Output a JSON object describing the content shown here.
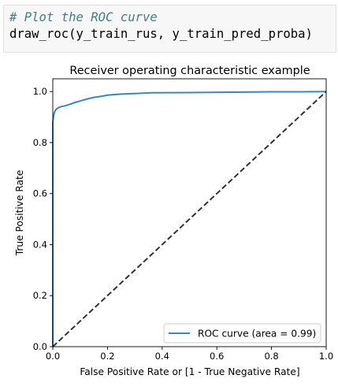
{
  "code_cell": {
    "comment": "# Plot the ROC curve",
    "call": "draw_roc(y_train_rus, y_train_pred_proba)"
  },
  "chart_data": {
    "type": "line",
    "title": "Receiver operating characteristic example",
    "xlabel": "False Positive Rate or [1 - True Negative Rate]",
    "ylabel": "True Positive Rate",
    "xlim": [
      0.0,
      1.0
    ],
    "ylim": [
      0.0,
      1.05
    ],
    "xticks": [
      "0.0",
      "0.2",
      "0.4",
      "0.6",
      "0.8",
      "1.0"
    ],
    "yticks": [
      "0.0",
      "0.2",
      "0.4",
      "0.6",
      "0.8",
      "1.0"
    ],
    "grid": false,
    "legend_position": "lower right",
    "series": [
      {
        "name": "ROC curve (area = 0.99)",
        "color": "#3a87bd",
        "style": "solid",
        "x": [
          0.0,
          0.0,
          0.003,
          0.006,
          0.01,
          0.015,
          0.022,
          0.03,
          0.045,
          0.06,
          0.075,
          0.09,
          0.11,
          0.13,
          0.15,
          0.17,
          0.2,
          0.25,
          0.3,
          0.36,
          0.5,
          0.7,
          0.8,
          0.9,
          1.0
        ],
        "y": [
          0.0,
          0.88,
          0.905,
          0.918,
          0.927,
          0.933,
          0.937,
          0.941,
          0.944,
          0.949,
          0.955,
          0.96,
          0.966,
          0.972,
          0.977,
          0.98,
          0.986,
          0.99,
          0.992,
          0.995,
          0.996,
          0.998,
          0.999,
          0.999,
          1.0
        ]
      },
      {
        "name": "",
        "color": "#333333",
        "style": "dashed",
        "x": [
          0.0,
          1.0
        ],
        "y": [
          0.0,
          1.0
        ]
      }
    ]
  }
}
